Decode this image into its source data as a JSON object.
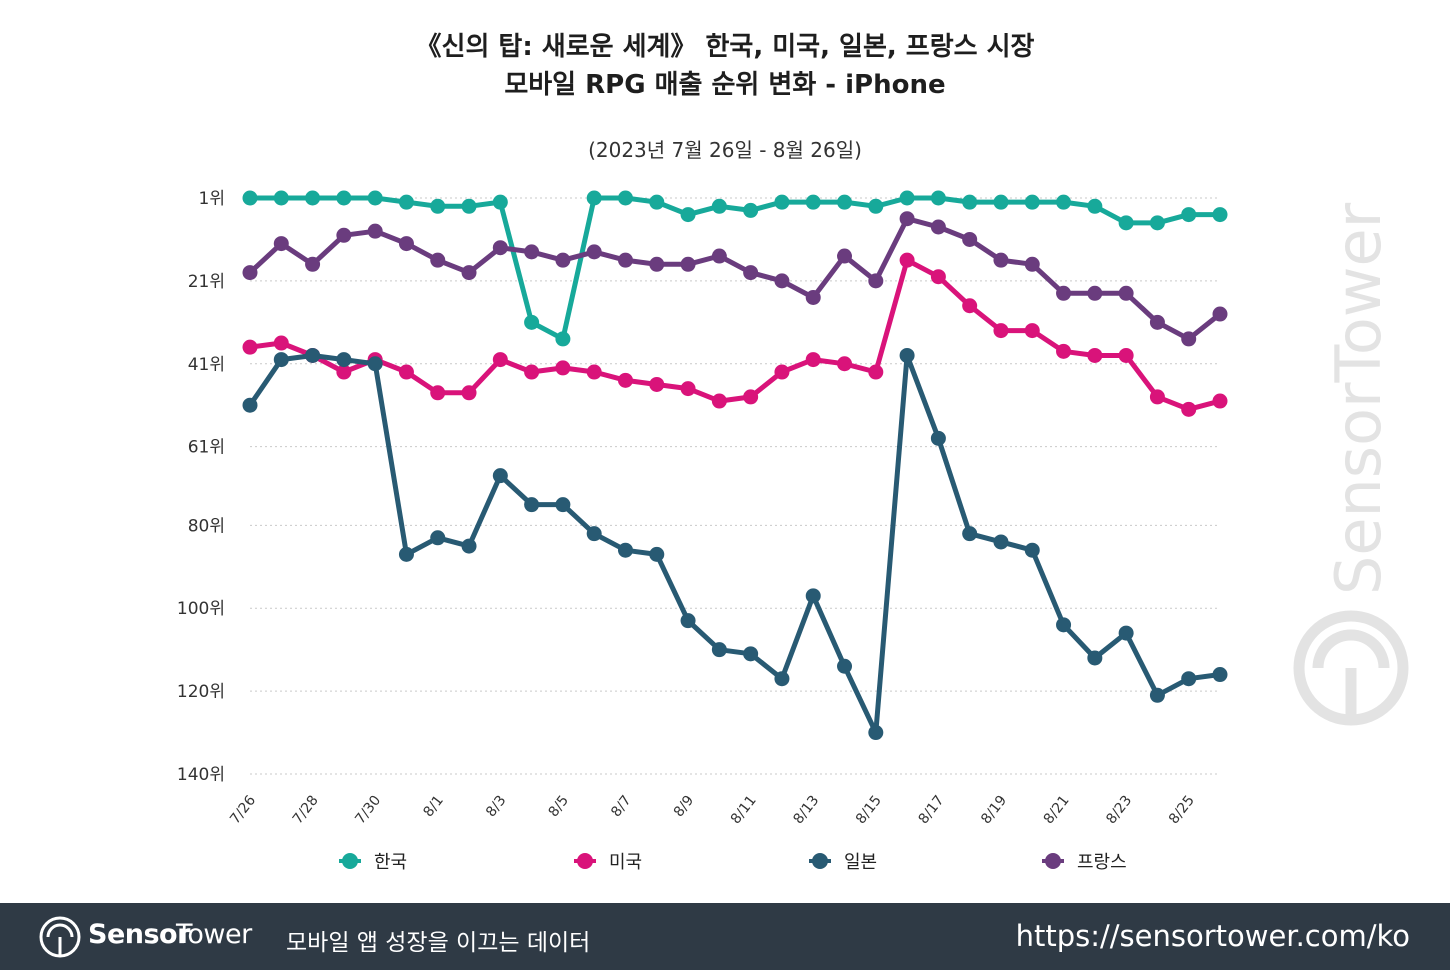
{
  "brand_color": "#2f3a45",
  "chart_data": {
    "type": "line",
    "title": "《신의 탑: 새로운 세계》 한국, 미국, 일본, 프랑스 시장",
    "title_line2": "모바일 RPG 매출 순위 변화 - iPhone",
    "subtitle": "(2023년 7월 26일 - 8월 26일)",
    "ylabel": "",
    "xlabel": "",
    "y_inverted": true,
    "ylim": [
      1,
      140
    ],
    "y_ticks": [
      {
        "value": 1,
        "label": "1위"
      },
      {
        "value": 21,
        "label": "21위"
      },
      {
        "value": 41,
        "label": "41위"
      },
      {
        "value": 61,
        "label": "61위"
      },
      {
        "value": 80,
        "label": "80위"
      },
      {
        "value": 100,
        "label": "100위"
      },
      {
        "value": 120,
        "label": "120위"
      },
      {
        "value": 140,
        "label": "140위"
      }
    ],
    "x": [
      "7/26",
      "7/27",
      "7/28",
      "7/29",
      "7/30",
      "7/31",
      "8/1",
      "8/2",
      "8/3",
      "8/4",
      "8/5",
      "8/6",
      "8/7",
      "8/8",
      "8/9",
      "8/10",
      "8/11",
      "8/12",
      "8/13",
      "8/14",
      "8/15",
      "8/16",
      "8/17",
      "8/18",
      "8/19",
      "8/20",
      "8/21",
      "8/22",
      "8/23",
      "8/24",
      "8/25",
      "8/26"
    ],
    "x_tick_labels": [
      "7/26",
      "7/28",
      "7/30",
      "8/1",
      "8/3",
      "8/5",
      "8/7",
      "8/9",
      "8/11",
      "8/13",
      "8/15",
      "8/17",
      "8/19",
      "8/21",
      "8/23",
      "8/25"
    ],
    "grid": "horizontal dotted",
    "legend_position": "bottom",
    "series": [
      {
        "name": "한국",
        "color": "#17a99a",
        "values": [
          1,
          1,
          1,
          1,
          1,
          2,
          3,
          3,
          2,
          31,
          35,
          1,
          1,
          2,
          5,
          3,
          4,
          2,
          2,
          2,
          3,
          1,
          1,
          2,
          2,
          2,
          2,
          3,
          7,
          7,
          5,
          5
        ]
      },
      {
        "name": "미국",
        "color": "#d9137a",
        "values": [
          37,
          36,
          39,
          43,
          40,
          43,
          48,
          48,
          40,
          43,
          42,
          43,
          45,
          46,
          47,
          50,
          49,
          43,
          40,
          41,
          43,
          16,
          20,
          27,
          33,
          33,
          38,
          39,
          39,
          49,
          52,
          50
        ]
      },
      {
        "name": "일본",
        "color": "#285a73",
        "values": [
          51,
          40,
          39,
          40,
          41,
          87,
          83,
          85,
          68,
          75,
          75,
          82,
          86,
          87,
          103,
          110,
          111,
          117,
          97,
          114,
          130,
          39,
          59,
          82,
          84,
          86,
          104,
          112,
          106,
          121,
          117,
          116
        ]
      },
      {
        "name": "프랑스",
        "color": "#6a3c7e",
        "values": [
          19,
          12,
          17,
          10,
          9,
          12,
          16,
          19,
          13,
          14,
          16,
          14,
          16,
          17,
          17,
          15,
          19,
          21,
          25,
          15,
          21,
          6,
          8,
          11,
          16,
          17,
          24,
          24,
          24,
          31,
          35,
          29
        ]
      }
    ]
  },
  "watermark": {
    "text": "SensorTower"
  },
  "footer": {
    "brand_sensor": "Sensor",
    "brand_tower": "Tower",
    "tagline": "모바일 앱 성장을 이끄는 데이터",
    "url": "https://sensortower.com/ko"
  }
}
